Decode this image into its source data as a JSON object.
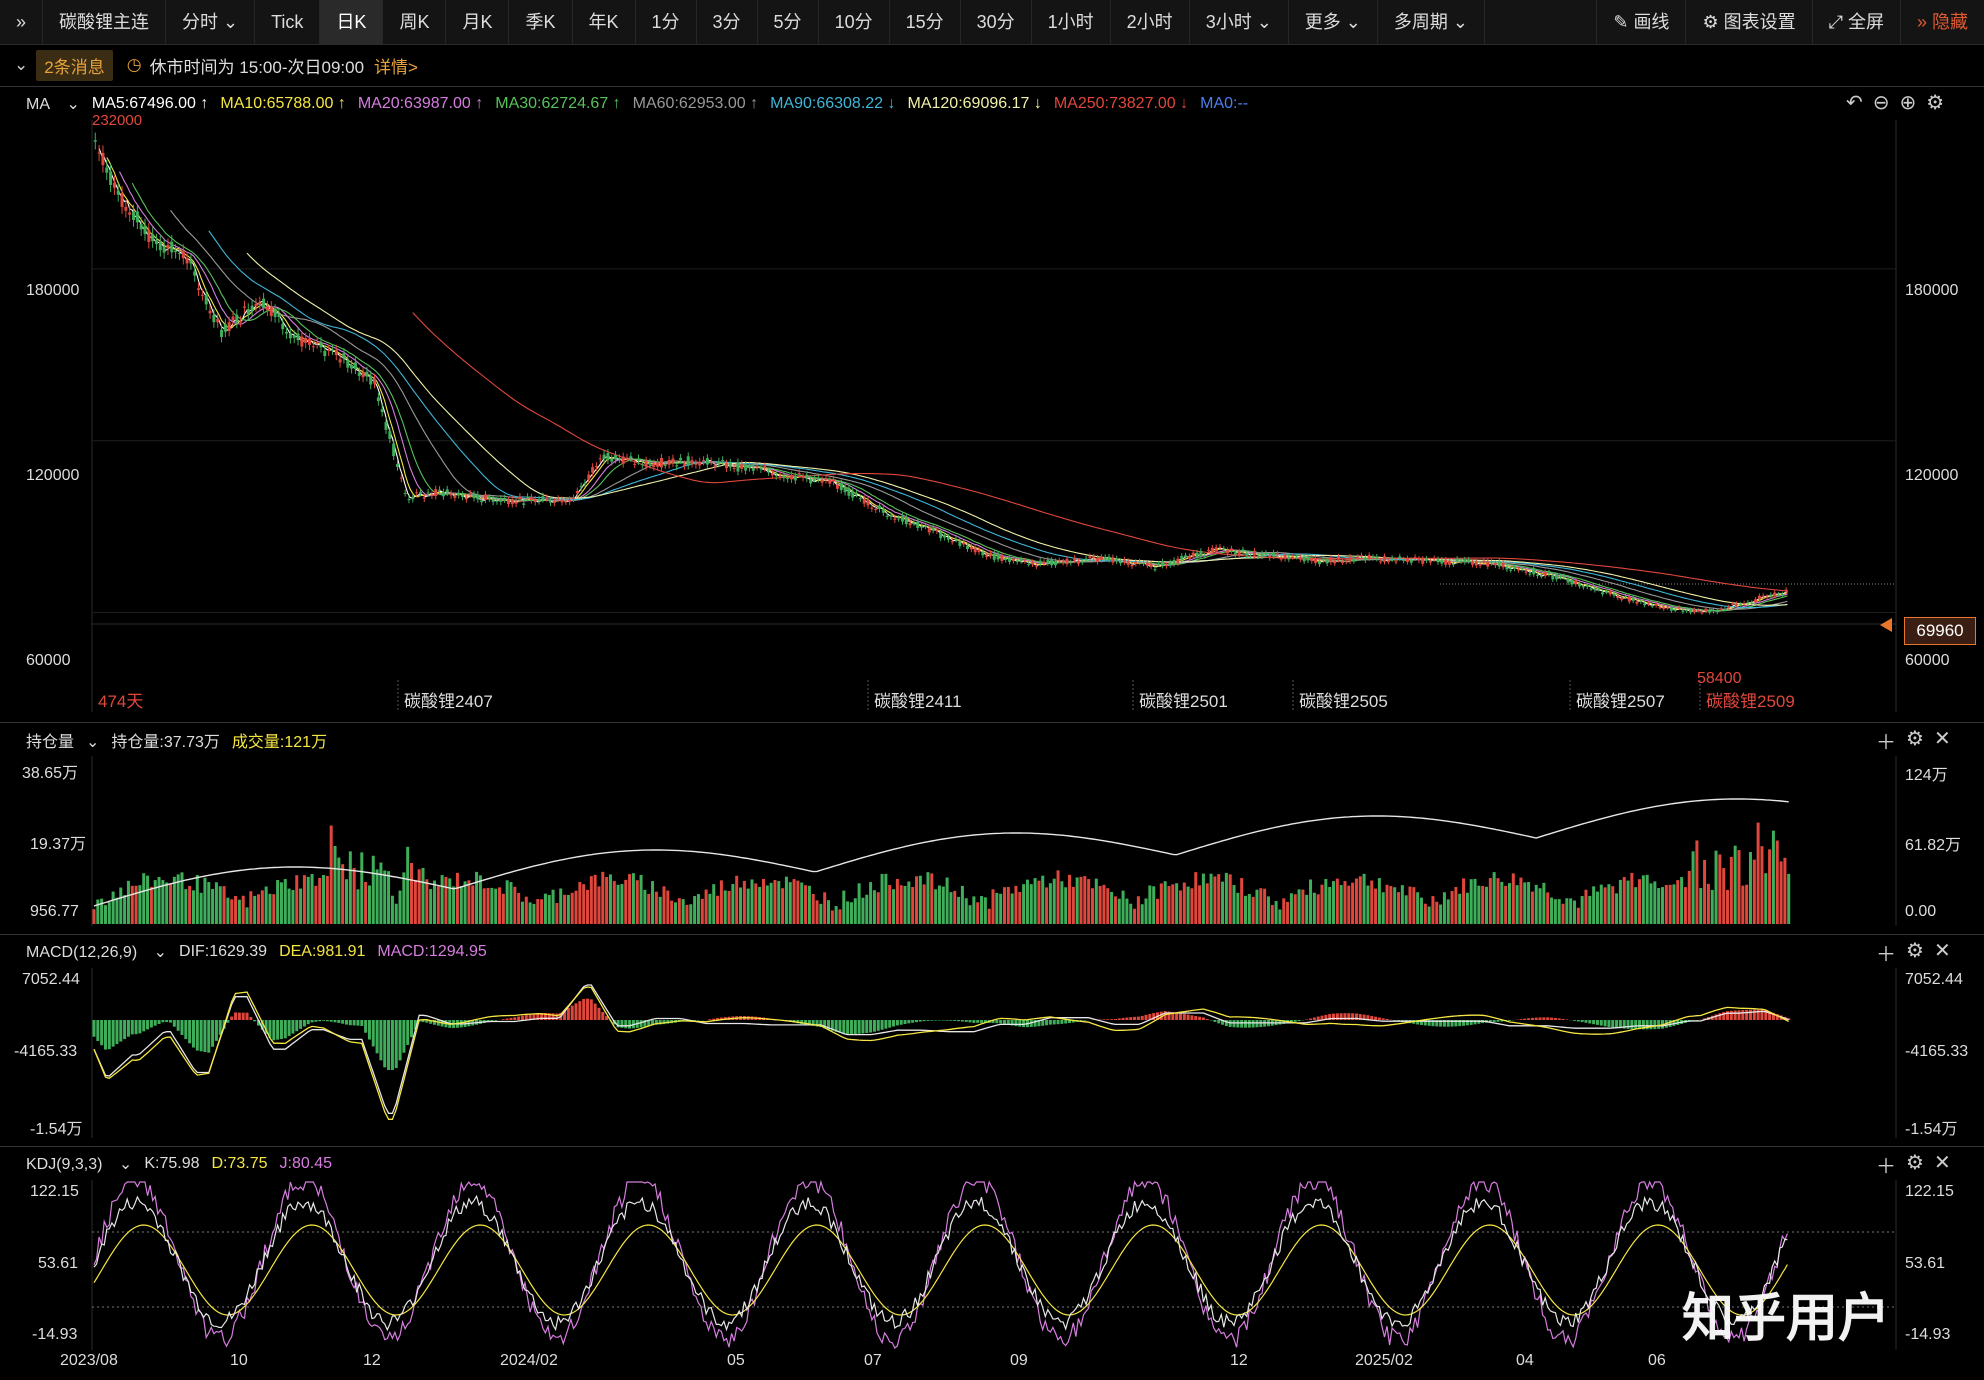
{
  "toolbar": {
    "expand_icon": "double-chevron-right-icon",
    "symbol": "碳酸锂主连",
    "periods": [
      "分时",
      "Tick",
      "日K",
      "周K",
      "月K",
      "季K",
      "年K",
      "1分",
      "3分",
      "5分",
      "10分",
      "15分",
      "30分",
      "1小时",
      "2小时",
      "3小时",
      "更多",
      "多周期"
    ],
    "active_period": "日K",
    "draw": "画线",
    "settings": "图表设置",
    "fullscreen": "全屏",
    "hide": "隐藏"
  },
  "infobar": {
    "messages": "2条消息",
    "session": "休市时间为 15:00-次日09:00",
    "detail": "详情>"
  },
  "ma": {
    "label": "MA",
    "items": [
      {
        "text": "MA5:67496.00 ↑",
        "color": "#ffffff"
      },
      {
        "text": "MA10:65788.00 ↑",
        "color": "#f5e642"
      },
      {
        "text": "MA20:63987.00 ↑",
        "color": "#d77de0"
      },
      {
        "text": "MA30:62724.67 ↑",
        "color": "#57c25a"
      },
      {
        "text": "MA60:62953.00 ↑",
        "color": "#999999"
      },
      {
        "text": "MA90:66308.22 ↓",
        "color": "#3fb5d8"
      },
      {
        "text": "MA120:69096.17 ↓",
        "color": "#f1f1a8"
      },
      {
        "text": "MA250:73827.00 ↓",
        "color": "#e0473c"
      },
      {
        "text": "MA0:--",
        "color": "#4d7ef0"
      }
    ],
    "y_ticks": [
      "180000",
      "120000",
      "60000"
    ],
    "top_price": "232000",
    "last_price": "69960",
    "low_price": "58400",
    "days": "474天",
    "contracts": [
      "碳酸锂2407",
      "碳酸锂2411",
      "碳酸锂2501",
      "碳酸锂2505",
      "碳酸锂2507",
      "碳酸锂2509"
    ]
  },
  "volume": {
    "label": "持仓量",
    "oi": "持仓量:37.73万",
    "vol": "成交量:121万",
    "left_ticks": [
      "38.65万",
      "19.37万",
      "956.77"
    ],
    "right_ticks": [
      "124万",
      "61.82万",
      "0.00"
    ]
  },
  "macd": {
    "label": "MACD(12,26,9)",
    "dif": "DIF:1629.39",
    "dea": "DEA:981.91",
    "macd": "MACD:1294.95",
    "ticks": [
      "7052.44",
      "-4165.33",
      "-1.54万"
    ]
  },
  "kdj": {
    "label": "KDJ(9,3,3)",
    "k": "K:75.98",
    "d": "D:73.75",
    "j": "J:80.45",
    "ticks": [
      "122.15",
      "53.61",
      "-14.93"
    ]
  },
  "xaxis": [
    "2023/08",
    "10",
    "12",
    "2024/02",
    "05",
    "07",
    "09",
    "12",
    "2025/02",
    "04",
    "06"
  ],
  "watermark": "知乎用户",
  "colors": {
    "up": "#e0473c",
    "down": "#3fae5a",
    "accent": "#e8a23c"
  }
}
